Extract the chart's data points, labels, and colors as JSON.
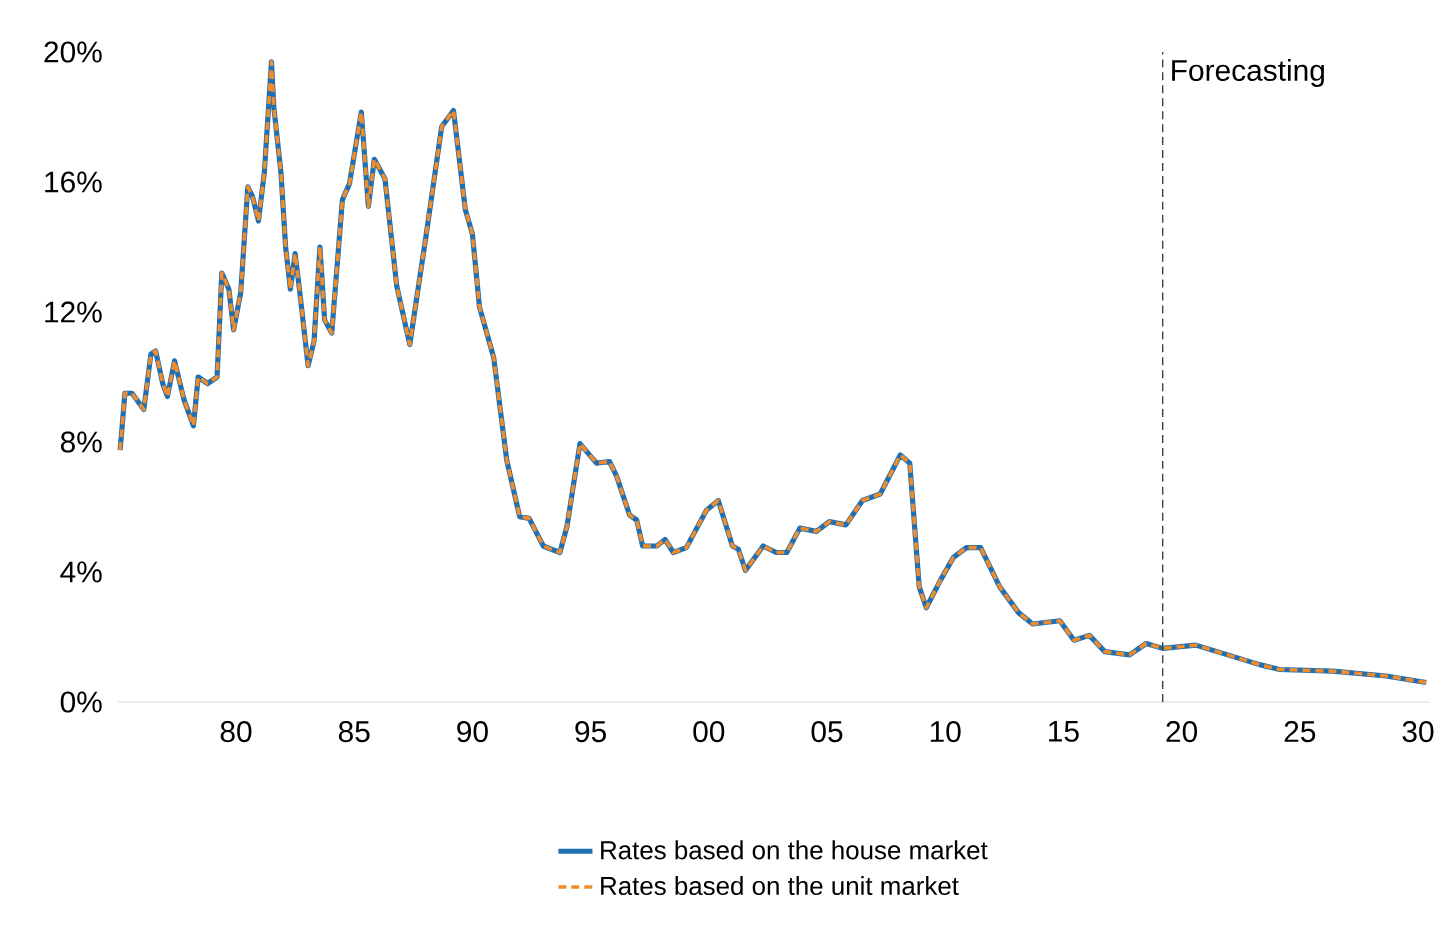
{
  "chart_data": {
    "type": "line",
    "x": [
      1975.1,
      1975.3,
      1975.6,
      1976.1,
      1976.4,
      1976.6,
      1976.9,
      1977.1,
      1977.4,
      1977.8,
      1978.2,
      1978.4,
      1978.8,
      1979.2,
      1979.4,
      1979.7,
      1979.9,
      1980.2,
      1980.5,
      1980.7,
      1980.95,
      1981.2,
      1981.5,
      1981.6,
      1981.9,
      1982.1,
      1982.3,
      1982.5,
      1982.7,
      1983.05,
      1983.3,
      1983.55,
      1983.75,
      1984.05,
      1984.5,
      1984.8,
      1985.3,
      1985.6,
      1985.85,
      1986.3,
      1986.8,
      1987.35,
      1988.05,
      1988.7,
      1989.2,
      1989.7,
      1990.0,
      1990.3,
      1990.9,
      1991.45,
      1992.0,
      1992.4,
      1993.0,
      1993.7,
      1994.0,
      1994.55,
      1995.25,
      1995.8,
      1996.1,
      1996.65,
      1996.95,
      1997.2,
      1997.8,
      1998.15,
      1998.5,
      1999.05,
      1999.9,
      2000.4,
      2001.0,
      2001.25,
      2001.55,
      2002.3,
      2002.85,
      2003.3,
      2003.85,
      2004.55,
      2005.1,
      2005.8,
      2006.5,
      2007.25,
      2008.1,
      2008.5,
      2008.9,
      2009.2,
      2009.8,
      2010.35,
      2010.9,
      2011.5,
      2012.3,
      2013.1,
      2013.7,
      2014.85,
      2015.45,
      2016.1,
      2016.75,
      2017.8,
      2018.5,
      2019.2,
      2020.6,
      2021.5,
      2023.3,
      2024.15,
      2026.4,
      2028.65,
      2030.35
    ],
    "series": [
      {
        "name": "Rates based on the house market",
        "color": "#1f6fb4",
        "line_style": "solid",
        "values": [
          7.75,
          9.5,
          9.5,
          9.0,
          10.7,
          10.8,
          9.8,
          9.4,
          10.5,
          9.3,
          8.5,
          10.0,
          9.8,
          10.0,
          13.2,
          12.7,
          11.45,
          12.6,
          15.85,
          15.55,
          14.8,
          16.3,
          19.7,
          18.3,
          16.3,
          14.0,
          12.7,
          13.8,
          12.6,
          10.35,
          11.1,
          14.0,
          11.75,
          11.35,
          15.45,
          15.95,
          18.15,
          15.25,
          16.7,
          16.1,
          12.8,
          11.0,
          14.4,
          17.7,
          18.2,
          15.15,
          14.4,
          12.15,
          10.6,
          7.45,
          5.7,
          5.65,
          4.8,
          4.6,
          5.4,
          7.95,
          7.35,
          7.4,
          6.95,
          5.75,
          5.6,
          4.8,
          4.8,
          5.0,
          4.6,
          4.75,
          5.9,
          6.2,
          4.8,
          4.7,
          4.05,
          4.8,
          4.6,
          4.6,
          5.35,
          5.25,
          5.55,
          5.45,
          6.2,
          6.4,
          7.6,
          7.35,
          3.55,
          2.9,
          3.75,
          4.45,
          4.75,
          4.75,
          3.55,
          2.75,
          2.4,
          2.5,
          1.9,
          2.05,
          1.55,
          1.45,
          1.8,
          1.65,
          1.75,
          1.55,
          1.15,
          1.0,
          0.95,
          0.8,
          0.6
        ]
      },
      {
        "name": "Rates based on the unit market",
        "color": "#f28c28",
        "line_style": "dashed",
        "values": [
          7.75,
          9.5,
          9.5,
          9.0,
          10.7,
          10.8,
          9.8,
          9.4,
          10.5,
          9.3,
          8.5,
          10.0,
          9.8,
          10.0,
          13.2,
          12.7,
          11.45,
          12.6,
          15.85,
          15.55,
          14.8,
          16.3,
          19.7,
          18.3,
          16.3,
          14.0,
          12.7,
          13.8,
          12.6,
          10.35,
          11.1,
          14.0,
          11.75,
          11.35,
          15.45,
          15.95,
          18.15,
          15.25,
          16.7,
          16.1,
          12.8,
          11.0,
          14.4,
          17.7,
          18.2,
          15.15,
          14.4,
          12.15,
          10.6,
          7.45,
          5.7,
          5.65,
          4.8,
          4.6,
          5.4,
          7.95,
          7.35,
          7.4,
          6.95,
          5.75,
          5.6,
          4.8,
          4.8,
          5.0,
          4.6,
          4.75,
          5.9,
          6.2,
          4.8,
          4.7,
          4.05,
          4.8,
          4.6,
          4.6,
          5.35,
          5.25,
          5.55,
          5.45,
          6.2,
          6.4,
          7.6,
          7.35,
          3.55,
          2.9,
          3.75,
          4.45,
          4.75,
          4.75,
          3.55,
          2.75,
          2.4,
          2.5,
          1.9,
          2.05,
          1.55,
          1.45,
          1.8,
          1.65,
          1.75,
          1.55,
          1.15,
          1.0,
          0.95,
          0.8,
          0.6
        ]
      }
    ],
    "xlim": [
      1975,
      2030.5
    ],
    "xticks": [
      {
        "value": 1980,
        "label": "80"
      },
      {
        "value": 1985,
        "label": "85"
      },
      {
        "value": 1990,
        "label": "90"
      },
      {
        "value": 1995,
        "label": "95"
      },
      {
        "value": 2000,
        "label": "00"
      },
      {
        "value": 2005,
        "label": "05"
      },
      {
        "value": 2010,
        "label": "10"
      },
      {
        "value": 2015,
        "label": "15"
      },
      {
        "value": 2020,
        "label": "20"
      },
      {
        "value": 2025,
        "label": "25"
      },
      {
        "value": 2030,
        "label": "30"
      }
    ],
    "ylim": [
      0,
      20
    ],
    "yticks": [
      {
        "value": 0,
        "label": "0%"
      },
      {
        "value": 4,
        "label": "4%"
      },
      {
        "value": 8,
        "label": "8%"
      },
      {
        "value": 12,
        "label": "12%"
      },
      {
        "value": 16,
        "label": "16%"
      },
      {
        "value": 20,
        "label": "20%"
      }
    ],
    "ref_lines": [
      {
        "axis": "x",
        "value": 2019.2,
        "label": "Forecasting",
        "color": "#404040",
        "line_style": "dashed"
      }
    ],
    "grid": false,
    "legend": "bottom"
  }
}
